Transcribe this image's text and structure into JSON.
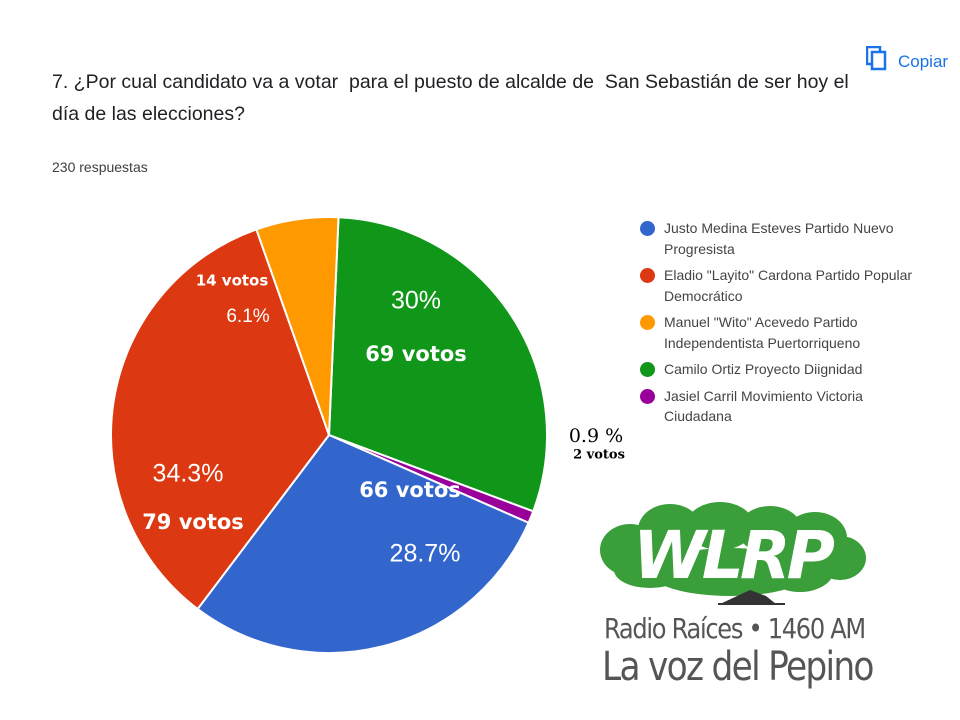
{
  "header": {
    "copy_label": "Copiar",
    "question": "7. ¿Por cual candidato va a votar  para el puesto de alcalde de  San Sebastián de ser hoy el día de las elecciones?",
    "responses": "230 respuestas"
  },
  "chart_data": {
    "type": "pie",
    "total_label": "230 respuestas",
    "slices": [
      {
        "name": "Justo Medina Esteves Partido Nuevo Progresista",
        "value": 28.7,
        "votes": 66,
        "pct_label": "28.7%",
        "votes_label": "66 votos",
        "color": "#3366cc"
      },
      {
        "name": "Eladio \"Layito\" Cardona Partido Popular Democrático",
        "value": 34.3,
        "votes": 79,
        "pct_label": "34.3%",
        "votes_label": "79 votos",
        "color": "#dc3912"
      },
      {
        "name": "Manuel \"Wito\" Acevedo Partido Independentista Puertorriqueno",
        "value": 6.1,
        "votes": 14,
        "pct_label": "6.1%",
        "votes_label": "14 votos",
        "color": "#ff9900"
      },
      {
        "name": "Camilo Ortiz Proyecto Diignidad",
        "value": 30,
        "votes": 69,
        "pct_label": "30%",
        "votes_label": "69 votos",
        "color": "#109618"
      },
      {
        "name": "Jasiel Carril Movimiento Victoria Ciudadana",
        "value": 0.9,
        "votes": 2,
        "pct_label": "0.9 %",
        "votes_label": "2 votos",
        "color": "#990099"
      }
    ],
    "draw_order": [
      3,
      4,
      0,
      1,
      2
    ],
    "start_angle_deg": 87.5,
    "legend_placement": "right"
  },
  "legend": [
    {
      "line1": "Justo Medina Esteves Partido Nuevo",
      "line2": "Progresista",
      "color": "#3366cc"
    },
    {
      "line1": "Eladio \"Layito\" Cardona Partido Popular",
      "line2": "Democrático",
      "color": "#dc3912"
    },
    {
      "line1": "Manuel \"Wito\" Acevedo Partido",
      "line2": "Independentista Puertorriqueno",
      "color": "#ff9900"
    },
    {
      "line1": "Camilo Ortiz Proyecto Diignidad",
      "line2": "",
      "color": "#109618"
    },
    {
      "line1": "Jasiel Carril Movimiento Victoria",
      "line2": "Ciudadana",
      "color": "#990099"
    }
  ],
  "logo": {
    "letters": "WLRP",
    "line1": "Radio Raíces • 1460 AM",
    "line2": "La voz del Pepino",
    "color": "#3a9e3a"
  }
}
